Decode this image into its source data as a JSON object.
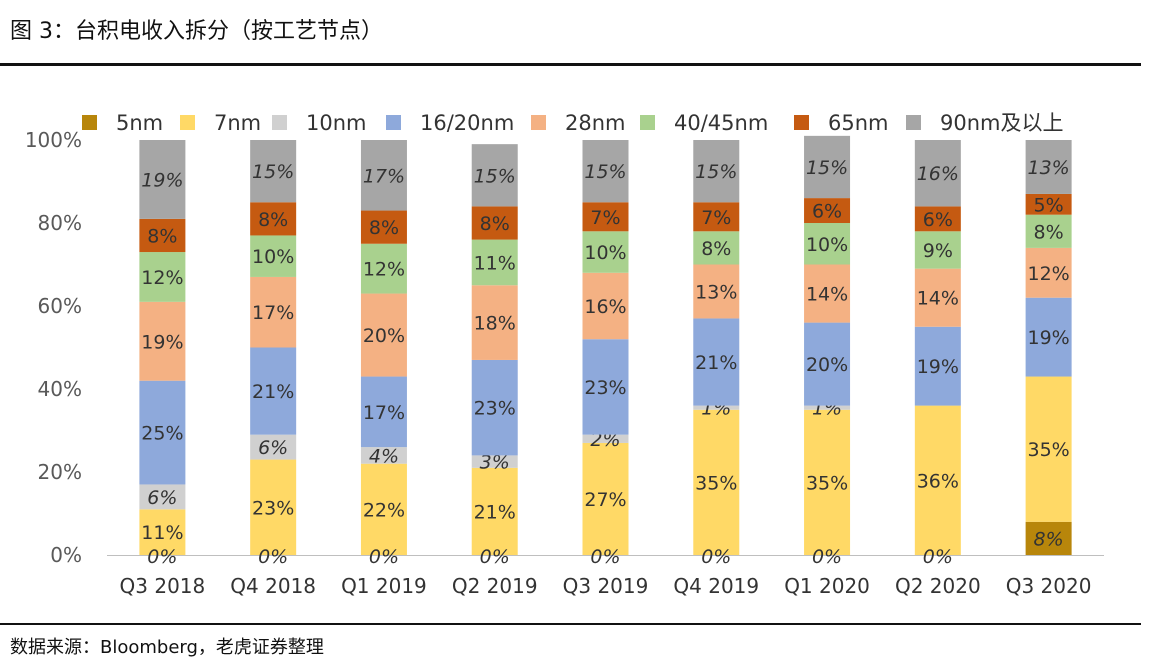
{
  "title": "图 3：台积电收入拆分（按工艺节点）",
  "source": "数据来源：Bloomberg，老虎证券整理",
  "chart_data": {
    "type": "bar",
    "stacked": true,
    "categories": [
      "Q3 2018",
      "Q4 2018",
      "Q1 2019",
      "Q2 2019",
      "Q3 2019",
      "Q4 2019",
      "Q1 2020",
      "Q2 2020",
      "Q3 2020"
    ],
    "y_ticks": [
      "0%",
      "20%",
      "40%",
      "60%",
      "80%",
      "100%"
    ],
    "ylim": [
      0,
      100
    ],
    "legend_position": "top",
    "series": [
      {
        "name": "5nm",
        "color": "#B8860B",
        "values": [
          0,
          0,
          0,
          0,
          0,
          0,
          0,
          0,
          8
        ],
        "labels": [
          "",
          "",
          "",
          "",
          "",
          "",
          "",
          "",
          "8%"
        ],
        "italic": true
      },
      {
        "name": "7nm",
        "color": "#FFD966",
        "values": [
          11,
          23,
          22,
          21,
          27,
          35,
          35,
          36,
          35
        ],
        "labels": [
          "11%",
          "23%",
          "22%",
          "21%",
          "27%",
          "35%",
          "35%",
          "36%",
          "35%"
        ],
        "italic": false
      },
      {
        "name": "10nm",
        "color": "#D0D0D0",
        "values": [
          6,
          6,
          4,
          3,
          2,
          1,
          1,
          0,
          0
        ],
        "labels": [
          "6%",
          "6%",
          "4%",
          "3%",
          "2%",
          "1%",
          "1%",
          "",
          ""
        ],
        "italic": true
      },
      {
        "name": "16/20nm",
        "color": "#8EA9DB",
        "values": [
          25,
          21,
          17,
          23,
          23,
          21,
          20,
          19,
          19
        ],
        "labels": [
          "25%",
          "21%",
          "17%",
          "23%",
          "23%",
          "21%",
          "20%",
          "19%",
          "19%"
        ],
        "italic": false
      },
      {
        "name": "28nm",
        "color": "#F4B183",
        "values": [
          19,
          17,
          20,
          18,
          16,
          13,
          14,
          14,
          12
        ],
        "labels": [
          "19%",
          "17%",
          "20%",
          "18%",
          "16%",
          "13%",
          "14%",
          "14%",
          "12%"
        ],
        "italic": false
      },
      {
        "name": "40/45nm",
        "color": "#A9D18E",
        "values": [
          12,
          10,
          12,
          11,
          10,
          8,
          10,
          9,
          8
        ],
        "labels": [
          "12%",
          "10%",
          "12%",
          "11%",
          "10%",
          "8%",
          "10%",
          "9%",
          "8%"
        ],
        "italic": false
      },
      {
        "name": "65nm",
        "color": "#C55A11",
        "values": [
          8,
          8,
          8,
          8,
          7,
          7,
          6,
          6,
          5
        ],
        "labels": [
          "8%",
          "8%",
          "8%",
          "8%",
          "7%",
          "7%",
          "6%",
          "6%",
          "5%"
        ],
        "italic": false
      },
      {
        "name": "90nm及以上",
        "color": "#A6A6A6",
        "values": [
          19,
          15,
          17,
          15,
          15,
          15,
          15,
          16,
          13
        ],
        "labels": [
          "19%",
          "15%",
          "17%",
          "15%",
          "15%",
          "15%",
          "15%",
          "16%",
          "13%"
        ],
        "italic": true
      }
    ],
    "zero_labels": [
      "0%",
      "0%",
      "0%",
      "0%",
      "0%",
      "0%",
      "0%",
      "0%",
      ""
    ]
  }
}
